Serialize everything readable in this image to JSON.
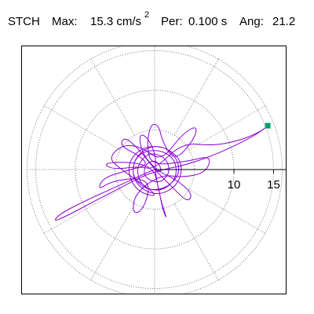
{
  "header": {
    "station": "STCH",
    "max_label": "Max:",
    "max_value": "15.3 cm/s",
    "max_exponent": "2",
    "period_label": "Per:",
    "period_value": "0.100 s",
    "angle_label": "Ang:",
    "angle_value": "21.2"
  },
  "chart_data": {
    "type": "polar-particle-motion",
    "title": "",
    "units": "cm/s²",
    "max_amplitude": 15.3,
    "period_s": 0.1,
    "angle_deg": 21.2,
    "radial_ticks": [
      "10",
      "15"
    ],
    "radial_tick_values": [
      10,
      15
    ],
    "ring_values": [
      5,
      10,
      15
    ],
    "spoke_step_deg": 30,
    "grid": true,
    "colors": {
      "trace": "#8a00d4",
      "marker": "#009e73",
      "grid": "#777777"
    },
    "marker_point": {
      "r": 15.3,
      "angle_deg": 21.2
    },
    "trace": [
      [
        0.0,
        0.0
      ],
      [
        1.0,
        -0.6
      ],
      [
        0.4,
        1.2
      ],
      [
        -1.2,
        0.8
      ],
      [
        -1.4,
        -1.0
      ],
      [
        0.6,
        -1.8
      ],
      [
        2.0,
        -0.4
      ],
      [
        1.4,
        1.6
      ],
      [
        -0.8,
        2.2
      ],
      [
        -2.4,
        0.2
      ],
      [
        -1.6,
        -2.2
      ],
      [
        0.8,
        -2.8
      ],
      [
        2.8,
        -1.2
      ],
      [
        2.6,
        1.4
      ],
      [
        0.4,
        2.6
      ],
      [
        -2.2,
        2.0
      ],
      [
        -3.0,
        -0.6
      ],
      [
        -1.2,
        -2.6
      ],
      [
        1.6,
        -2.4
      ],
      [
        3.4,
        -0.2
      ],
      [
        2.2,
        2.4
      ],
      [
        -0.4,
        3.2
      ],
      [
        -2.8,
        1.2
      ],
      [
        -2.6,
        -1.8
      ],
      [
        0.2,
        -3.4
      ],
      [
        3.0,
        -2.0
      ],
      [
        3.6,
        1.0
      ],
      [
        1.2,
        3.0
      ],
      [
        -1.8,
        2.8
      ],
      [
        -3.6,
        0.4
      ],
      [
        -2.4,
        -2.8
      ],
      [
        1.0,
        -3.6
      ],
      [
        -4.5,
        0.2
      ],
      [
        -5.8,
        1.5
      ],
      [
        -4.0,
        3.2
      ],
      [
        -1.5,
        2.8
      ],
      [
        0.8,
        1.0
      ],
      [
        3.5,
        4.5
      ],
      [
        5.4,
        5.6
      ],
      [
        5.0,
        3.8
      ],
      [
        2.5,
        1.0
      ],
      [
        1.0,
        3.5
      ],
      [
        0.5,
        5.6
      ],
      [
        -0.5,
        5.8
      ],
      [
        -1.0,
        3.0
      ],
      [
        -0.4,
        0.5
      ],
      [
        4.0,
        1.0
      ],
      [
        7.2,
        1.8
      ],
      [
        6.5,
        -0.4
      ],
      [
        3.5,
        -1.0
      ],
      [
        0.8,
        -0.6
      ],
      [
        -2.5,
        -3.0
      ],
      [
        -2.8,
        -5.6
      ],
      [
        -1.5,
        -5.2
      ],
      [
        -0.5,
        -2.0
      ],
      [
        -2.0,
        -1.0
      ],
      [
        -5.5,
        -1.5
      ],
      [
        -7.2,
        -2.6
      ],
      [
        -6.5,
        -1.0
      ],
      [
        -3.0,
        0.0
      ],
      [
        -0.8,
        0.6
      ],
      [
        -2.0,
        1.8
      ],
      [
        -4.4,
        3.0
      ],
      [
        -3.8,
        4.2
      ],
      [
        -1.8,
        2.4
      ],
      [
        0.0,
        0.0
      ],
      [
        2.0,
        -2.0
      ],
      [
        4.2,
        -4.2
      ],
      [
        4.8,
        -3.0
      ],
      [
        2.6,
        -1.2
      ],
      [
        0.4,
        -0.2
      ],
      [
        -1.6,
        2.0
      ],
      [
        -2.0,
        4.6
      ],
      [
        -0.8,
        4.0
      ],
      [
        0.2,
        1.6
      ],
      [
        0.0,
        0.0
      ],
      [
        0.8,
        -4.0
      ],
      [
        1.6,
        -6.4
      ],
      [
        1.0,
        -5.0
      ],
      [
        0.4,
        -1.8
      ],
      [
        -0.2,
        0.2
      ],
      [
        -3.0,
        1.0
      ],
      [
        -6.6,
        0.8
      ],
      [
        -5.2,
        0.0
      ],
      [
        -2.0,
        0.4
      ],
      [
        0.0,
        0.0
      ],
      [
        3.5,
        3.4
      ],
      [
        7.2,
        3.0
      ],
      [
        10.5,
        3.6
      ],
      [
        13.0,
        4.6
      ],
      [
        14.3,
        5.5
      ],
      [
        12.5,
        4.2
      ],
      [
        8.0,
        2.0
      ],
      [
        4.0,
        0.6
      ],
      [
        1.0,
        0.0
      ],
      [
        -1.5,
        -0.8
      ],
      [
        -4.5,
        -2.4
      ],
      [
        -8.0,
        -4.2
      ],
      [
        -11.0,
        -5.8
      ],
      [
        -12.8,
        -6.6
      ],
      [
        -12.0,
        -5.6
      ],
      [
        -8.5,
        -3.8
      ],
      [
        -4.0,
        -1.8
      ],
      [
        -1.0,
        -0.4
      ],
      [
        0.0,
        0.0
      ]
    ]
  }
}
